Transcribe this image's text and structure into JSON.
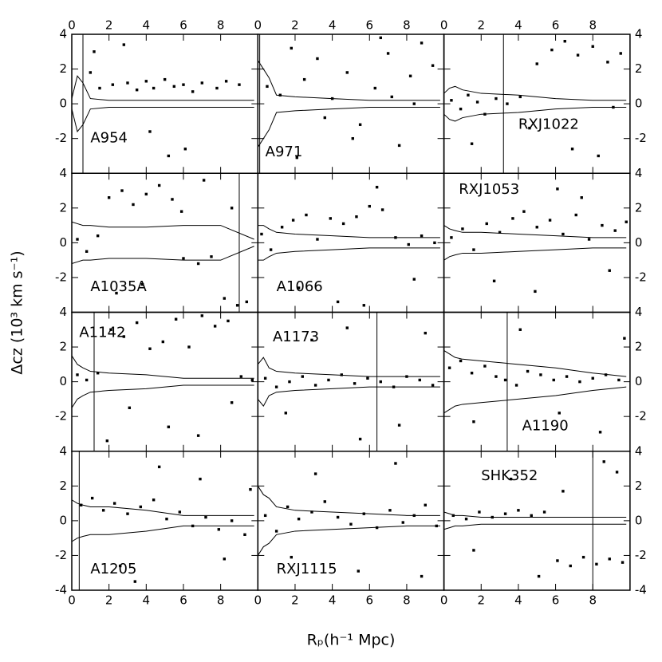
{
  "chart_data": {
    "type": "scatter",
    "xlabel": "Rₚ(h⁻¹ Mpc)",
    "ylabel": "Δcz (10³ km s⁻¹)",
    "xlim": [
      0,
      10
    ],
    "ylim": [
      -4,
      4
    ],
    "xticks": [
      0,
      2,
      4,
      6,
      8
    ],
    "yticks": [
      -4,
      -2,
      0,
      2,
      4
    ],
    "color": "#000000",
    "caustic_x": [
      0,
      0.3,
      0.6,
      1,
      2,
      4,
      6,
      8,
      9.8
    ],
    "panels": [
      {
        "name": "A954",
        "r200": 0.6,
        "caustic": [
          0.3,
          1.6,
          1.2,
          0.3,
          0.2,
          0.2,
          0.2,
          0.2,
          0.2
        ],
        "x": [
          1,
          1.5,
          2.2,
          3,
          3.5,
          4,
          4.4,
          5,
          5.5,
          6,
          6.5,
          7,
          7.8,
          8.3,
          9,
          4.2,
          6.1,
          2.8,
          5.2,
          1.2
        ],
        "y": [
          1.8,
          0.9,
          1.1,
          1.2,
          0.8,
          1.3,
          0.9,
          1.4,
          1.0,
          1.1,
          0.7,
          1.2,
          0.9,
          1.3,
          1.1,
          -1.6,
          -2.6,
          3.4,
          -3.0,
          3.0
        ]
      },
      {
        "name": "A971",
        "r200": 0.1,
        "caustic": [
          2.5,
          2.0,
          1.5,
          0.5,
          0.4,
          0.3,
          0.2,
          0.2,
          0.2
        ],
        "x": [
          0.5,
          1.2,
          1.8,
          2.5,
          3.2,
          4,
          4.8,
          5.5,
          6.3,
          7,
          7.6,
          8.2,
          8.8,
          9.4,
          2.1,
          5.1,
          7.2,
          3.6,
          8.4,
          6.6
        ],
        "y": [
          1.0,
          0.5,
          3.2,
          1.4,
          2.6,
          0.3,
          1.8,
          -1.2,
          0.9,
          2.9,
          -2.4,
          1.6,
          3.5,
          2.2,
          -3.1,
          -2.0,
          0.4,
          -0.8,
          0.0,
          3.8
        ]
      },
      {
        "name": "RXJ1022",
        "r200": 3.2,
        "caustic": [
          0.6,
          0.9,
          1.0,
          0.8,
          0.6,
          0.5,
          0.3,
          0.2,
          0.2
        ],
        "x": [
          0.4,
          0.9,
          1.3,
          1.8,
          2.2,
          2.8,
          3.4,
          4.1,
          5,
          5.8,
          6.5,
          7.2,
          8,
          8.8,
          9.5,
          6.9,
          8.3,
          4.6,
          9.1,
          1.5
        ],
        "y": [
          0.2,
          -0.3,
          0.5,
          0.1,
          -0.6,
          0.3,
          0.0,
          0.4,
          2.3,
          3.1,
          3.6,
          2.8,
          3.3,
          2.4,
          2.9,
          -2.6,
          -3.0,
          -1.4,
          -0.2,
          -2.3
        ]
      },
      {
        "name": "A1035A",
        "r200": 9.0,
        "caustic": [
          1.2,
          1.1,
          1.0,
          1.0,
          0.9,
          0.9,
          1.0,
          1.0,
          0.2
        ],
        "x": [
          0.3,
          0.8,
          1.4,
          2,
          2.7,
          3.3,
          4,
          4.7,
          5.4,
          6,
          6.8,
          7.5,
          8.2,
          8.9,
          9.4,
          3.8,
          5.9,
          7.1,
          2.4,
          8.6
        ],
        "y": [
          0.2,
          -0.5,
          0.4,
          2.6,
          3.0,
          2.2,
          2.8,
          3.3,
          2.5,
          -0.9,
          -1.2,
          -0.8,
          -3.2,
          -3.6,
          -3.4,
          -2.4,
          1.8,
          3.6,
          -2.9,
          2.0
        ]
      },
      {
        "name": "A1066",
        "caustic": [
          1.0,
          1.0,
          0.8,
          0.6,
          0.5,
          0.4,
          0.3,
          0.3,
          0.3
        ],
        "x": [
          0.2,
          0.7,
          1.3,
          1.9,
          2.6,
          3.2,
          3.9,
          4.6,
          5.3,
          6,
          6.7,
          7.4,
          8.1,
          8.8,
          9.5,
          2.2,
          4.3,
          6.4,
          8.4,
          5.7
        ],
        "y": [
          0.5,
          -0.4,
          0.9,
          1.3,
          1.6,
          0.2,
          1.4,
          1.1,
          1.5,
          2.1,
          1.9,
          0.3,
          -0.1,
          0.4,
          0.0,
          -2.6,
          -3.4,
          3.2,
          -2.1,
          -3.6
        ]
      },
      {
        "name": "RXJ1053",
        "caustic": [
          1.0,
          0.8,
          0.7,
          0.6,
          0.6,
          0.5,
          0.4,
          0.3,
          0.3
        ],
        "x": [
          0.4,
          1,
          1.6,
          2.3,
          3,
          3.7,
          4.3,
          5,
          5.7,
          6.4,
          7.1,
          7.8,
          8.5,
          9.2,
          9.8,
          2.7,
          4.9,
          7.4,
          8.9,
          6.1
        ],
        "y": [
          0.3,
          0.8,
          -0.4,
          1.1,
          0.6,
          1.4,
          1.8,
          0.9,
          1.3,
          0.5,
          1.6,
          0.2,
          1.0,
          0.7,
          1.2,
          -2.2,
          -2.8,
          2.6,
          -1.6,
          3.1
        ]
      },
      {
        "name": "A1142",
        "r200": 1.2,
        "caustic": [
          1.5,
          1.0,
          0.8,
          0.6,
          0.5,
          0.4,
          0.2,
          0.2,
          0.2
        ],
        "x": [
          0.3,
          0.8,
          1.4,
          2.1,
          2.8,
          3.5,
          4.2,
          4.9,
          5.6,
          6.3,
          7,
          7.7,
          8.4,
          9.1,
          9.7,
          3.1,
          5.2,
          6.8,
          8.6,
          1.9
        ],
        "y": [
          0.4,
          0.1,
          0.5,
          3.0,
          2.6,
          3.4,
          1.9,
          2.3,
          3.6,
          2.0,
          3.8,
          3.2,
          3.5,
          0.3,
          0.1,
          -1.5,
          -2.6,
          -3.1,
          -1.2,
          -3.4
        ]
      },
      {
        "name": "A1173",
        "r200": 6.4,
        "caustic": [
          1.0,
          1.4,
          0.8,
          0.6,
          0.5,
          0.4,
          0.3,
          0.3,
          0.3
        ],
        "x": [
          0.4,
          1,
          1.7,
          2.4,
          3.1,
          3.8,
          4.5,
          5.2,
          5.9,
          6.6,
          7.3,
          8,
          8.7,
          9.4,
          2.9,
          4.8,
          7.6,
          5.5,
          9,
          1.5
        ],
        "y": [
          0.2,
          -0.3,
          0.0,
          0.3,
          -0.2,
          0.1,
          0.4,
          -0.1,
          0.2,
          0.0,
          -0.3,
          0.3,
          0.1,
          -0.2,
          2.4,
          3.1,
          -2.5,
          -3.3,
          2.8,
          -1.8
        ]
      },
      {
        "name": "A1190",
        "r200": 3.4,
        "caustic": [
          1.8,
          1.6,
          1.4,
          1.3,
          1.2,
          1.0,
          0.8,
          0.5,
          0.3
        ],
        "x": [
          0.3,
          0.9,
          1.5,
          2.2,
          2.8,
          3.3,
          3.9,
          4.5,
          5.2,
          5.9,
          6.6,
          7.3,
          8,
          8.7,
          9.4,
          1.6,
          4.1,
          6.2,
          8.4,
          9.7
        ],
        "y": [
          0.8,
          1.2,
          0.5,
          0.9,
          0.3,
          0.1,
          -0.2,
          0.6,
          0.4,
          0.1,
          0.3,
          0.0,
          0.2,
          0.4,
          0.1,
          -2.3,
          3.0,
          -1.8,
          -2.9,
          2.5
        ]
      },
      {
        "name": "A1205",
        "r200": 0.4,
        "caustic": [
          1.2,
          1.0,
          0.9,
          0.8,
          0.8,
          0.6,
          0.3,
          0.3,
          0.3
        ],
        "x": [
          0.5,
          1.1,
          1.7,
          2.3,
          3,
          3.7,
          4.4,
          5.1,
          5.8,
          6.5,
          7.2,
          7.9,
          8.6,
          9.3,
          2.6,
          4.7,
          6.9,
          8.2,
          3.4,
          9.6
        ],
        "y": [
          0.9,
          1.3,
          0.6,
          1.0,
          0.4,
          0.8,
          1.2,
          0.1,
          0.5,
          -0.3,
          0.2,
          -0.5,
          0.0,
          -0.8,
          -2.6,
          3.1,
          2.4,
          -2.2,
          -3.5,
          1.8
        ]
      },
      {
        "name": "RXJ1115",
        "caustic": [
          2.0,
          1.5,
          1.3,
          0.8,
          0.6,
          0.5,
          0.4,
          0.3,
          0.3
        ],
        "x": [
          0.4,
          1,
          1.6,
          2.2,
          2.9,
          3.6,
          4.3,
          5,
          5.7,
          6.4,
          7.1,
          7.8,
          8.4,
          9,
          9.6,
          3.1,
          5.4,
          7.4,
          8.8,
          1.8
        ],
        "y": [
          0.3,
          -0.6,
          0.8,
          0.1,
          0.5,
          1.1,
          0.2,
          -0.2,
          0.4,
          -0.4,
          0.6,
          -0.1,
          0.3,
          0.9,
          -0.3,
          2.7,
          -2.9,
          3.3,
          -3.2,
          -2.1
        ]
      },
      {
        "name": "SHK352",
        "r200": 8.0,
        "caustic": [
          0.5,
          0.4,
          0.3,
          0.3,
          0.2,
          0.2,
          0.2,
          0.2,
          0.2
        ],
        "x": [
          0.5,
          1.2,
          1.9,
          2.6,
          3.3,
          4,
          4.7,
          5.4,
          6.1,
          6.8,
          7.5,
          8.2,
          8.9,
          9.6,
          3.6,
          6.4,
          8.6,
          9.3,
          1.6,
          5.1
        ],
        "y": [
          0.3,
          0.1,
          0.5,
          0.2,
          0.4,
          0.6,
          0.3,
          0.5,
          -2.3,
          -2.6,
          -2.1,
          -2.5,
          -2.2,
          -2.4,
          2.4,
          1.7,
          3.4,
          2.8,
          -1.7,
          -3.2
        ]
      }
    ]
  }
}
